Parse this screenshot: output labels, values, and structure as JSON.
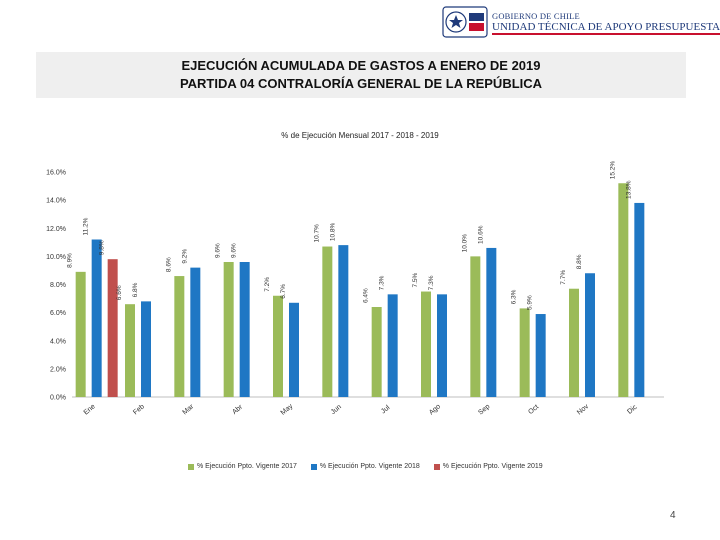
{
  "header": {
    "org_line": "GOBIERNO DE CHILE",
    "unit_line": "UNIDAD TÉCNICA DE APOYO PRESUPUESTARIO"
  },
  "title": {
    "line1": "EJECUCIÓN ACUMULADA DE GASTOS A ENERO DE 2019",
    "line2": "PARTIDA 04 CONTRALORÍA GENERAL DE LA REPÚBLICA"
  },
  "chart_data": {
    "type": "bar",
    "title": "% de Ejecución Mensual 2017 - 2018 - 2019",
    "categories": [
      "Ene",
      "Feb",
      "Mar",
      "Abr",
      "May",
      "Jun",
      "Jul",
      "Ago",
      "Sep",
      "Oct",
      "Nov",
      "Dic"
    ],
    "series": [
      {
        "name": "% Ejecución Ppto. Vigente 2017",
        "color": "#9bbb59",
        "values": [
          8.9,
          6.6,
          8.6,
          9.6,
          7.2,
          10.7,
          6.4,
          7.5,
          10.0,
          6.3,
          7.7,
          15.2
        ]
      },
      {
        "name": "% Ejecución Ppto. Vigente 2018",
        "color": "#1f77c4",
        "values": [
          11.2,
          6.8,
          9.2,
          9.6,
          6.7,
          10.8,
          7.3,
          7.3,
          10.6,
          5.9,
          8.8,
          13.8
        ]
      },
      {
        "name": "% Ejecución Ppto. Vigente 2019",
        "color": "#c0504d",
        "values": [
          9.8,
          null,
          null,
          null,
          null,
          null,
          null,
          null,
          null,
          null,
          null,
          null
        ]
      }
    ],
    "value_labels": [
      [
        "8.9%",
        "6.6%",
        "8.6%",
        "9.6%",
        "7.2%",
        "10.7%",
        "6.4%",
        "7.5%",
        "10.0%",
        "6.3%",
        "7.7%",
        "15.2%"
      ],
      [
        "11.2%",
        "6.8%",
        "9.2%",
        "9.6%",
        "6.7%",
        "10.8%",
        "7.3%",
        "7.3%",
        "10.6%",
        "5.9%",
        "8.8%",
        "13.8%"
      ],
      [
        "9.8%",
        null,
        null,
        null,
        null,
        null,
        null,
        null,
        null,
        null,
        null,
        null
      ]
    ],
    "y_ticks": [
      "0.0%",
      "2.0%",
      "4.0%",
      "6.0%",
      "8.0%",
      "10.0%",
      "12.0%",
      "14.0%",
      "16.0%"
    ],
    "ylim": [
      0,
      16
    ],
    "xlabel": "",
    "ylabel": "",
    "grid": false,
    "legend_position": "bottom"
  },
  "page_number": "4"
}
